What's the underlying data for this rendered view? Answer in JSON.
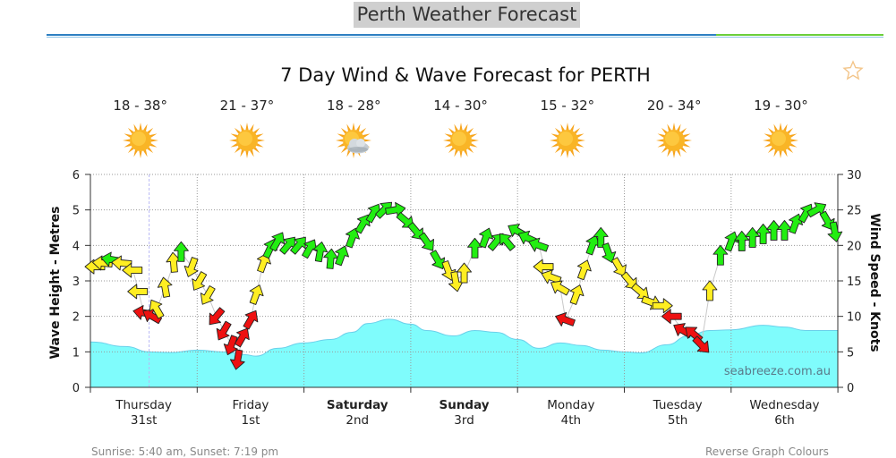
{
  "page": {
    "header": "Perth Weather Forecast",
    "sunrise_sunset": "Sunrise: 5:40 am, Sunset: 7:19 pm",
    "reverse_colours": "Reverse Graph Colours"
  },
  "colors": {
    "wave_fill": "#7ffcfc",
    "wave_stroke": "#6ad0ea",
    "arrow_green": "#22ee11",
    "arrow_yellow": "#ffee22",
    "arrow_red": "#ee1111",
    "grid": "#9a9a9a"
  },
  "chart_data": {
    "type": "area",
    "title": "7 Day Wind & Wave Forecast for PERTH",
    "ylabel_left": "Wave Height - Metres",
    "ylabel_right": "Wind Speed - Knots",
    "ylim_left": [
      0,
      6
    ],
    "ylim_right": [
      0,
      30
    ],
    "yticks_left": [
      "0",
      "1",
      "2",
      "3",
      "4",
      "5",
      "6"
    ],
    "yticks_right": [
      "0",
      "5",
      "10",
      "15",
      "20",
      "25",
      "30"
    ],
    "grid": true,
    "watermark": "seabreeze.com.au",
    "days": [
      {
        "name": "Thursday",
        "date": "31st",
        "temp": "18 - 38°",
        "icon": "sun-icon",
        "bold": false
      },
      {
        "name": "Friday",
        "date": "1st",
        "temp": "21 - 37°",
        "icon": "sun-icon",
        "bold": false
      },
      {
        "name": "Saturday",
        "date": "2nd",
        "temp": "18 - 28°",
        "icon": "sun-cloud-icon",
        "bold": true
      },
      {
        "name": "Sunday",
        "date": "3rd",
        "temp": "14 - 30°",
        "icon": "sun-icon",
        "bold": true
      },
      {
        "name": "Monday",
        "date": "4th",
        "temp": "15 - 32°",
        "icon": "sun-icon",
        "bold": false
      },
      {
        "name": "Tuesday",
        "date": "5th",
        "temp": "20 - 34°",
        "icon": "sun-icon",
        "bold": false
      },
      {
        "name": "Wednesday",
        "date": "6th",
        "temp": "19 - 30°",
        "icon": "sun-icon",
        "bold": false
      }
    ],
    "wave_height_series": {
      "name": "Wave Height - Metres",
      "x_days": [
        0,
        0.33,
        0.55,
        0.75,
        1.0,
        1.25,
        1.45,
        1.55,
        1.75,
        2.0,
        2.25,
        2.45,
        2.6,
        2.8,
        3.0,
        3.15,
        3.4,
        3.6,
        3.8,
        4.0,
        4.2,
        4.4,
        4.6,
        4.8,
        5.0,
        5.15,
        5.4,
        5.6,
        5.8,
        6.0,
        6.3,
        6.5,
        6.7
      ],
      "values": [
        1.28,
        1.15,
        1.0,
        0.98,
        1.05,
        1.0,
        0.92,
        0.88,
        1.1,
        1.25,
        1.35,
        1.55,
        1.8,
        1.92,
        1.78,
        1.6,
        1.45,
        1.6,
        1.55,
        1.35,
        1.1,
        1.25,
        1.18,
        1.05,
        1.0,
        0.97,
        1.2,
        1.45,
        1.6,
        1.62,
        1.75,
        1.7,
        1.6
      ]
    },
    "wind_series": {
      "name": "Wind Speed - Knots",
      "points": [
        {
          "x": 0.05,
          "kn": 17,
          "dir": 270
        },
        {
          "x": 0.12,
          "kn": 17.5,
          "dir": 275
        },
        {
          "x": 0.2,
          "kn": 18,
          "dir": 280
        },
        {
          "x": 0.3,
          "kn": 17.5,
          "dir": 275
        },
        {
          "x": 0.4,
          "kn": 16.5,
          "dir": 270
        },
        {
          "x": 0.45,
          "kn": 13.5,
          "dir": 270
        },
        {
          "x": 0.5,
          "kn": 10.5,
          "dir": 280
        },
        {
          "x": 0.58,
          "kn": 10,
          "dir": 300
        },
        {
          "x": 0.62,
          "kn": 11,
          "dir": 330
        },
        {
          "x": 0.7,
          "kn": 14,
          "dir": 350
        },
        {
          "x": 0.78,
          "kn": 17.5,
          "dir": 355
        },
        {
          "x": 0.85,
          "kn": 19,
          "dir": 0
        },
        {
          "x": 0.95,
          "kn": 17,
          "dir": 200
        },
        {
          "x": 1.02,
          "kn": 15,
          "dir": 210
        },
        {
          "x": 1.1,
          "kn": 13,
          "dir": 210
        },
        {
          "x": 1.18,
          "kn": 10,
          "dir": 220
        },
        {
          "x": 1.25,
          "kn": 8,
          "dir": 210
        },
        {
          "x": 1.32,
          "kn": 6,
          "dir": 200
        },
        {
          "x": 1.38,
          "kn": 4,
          "dir": 190
        },
        {
          "x": 1.42,
          "kn": 7,
          "dir": 30
        },
        {
          "x": 1.5,
          "kn": 9.5,
          "dir": 30
        },
        {
          "x": 1.55,
          "kn": 13,
          "dir": 20
        },
        {
          "x": 1.62,
          "kn": 17.5,
          "dir": 20
        },
        {
          "x": 1.68,
          "kn": 19.5,
          "dir": 25
        },
        {
          "x": 1.75,
          "kn": 20.5,
          "dir": 30
        },
        {
          "x": 1.85,
          "kn": 20,
          "dir": 40
        },
        {
          "x": 1.95,
          "kn": 20,
          "dir": 40
        },
        {
          "x": 2.05,
          "kn": 19.5,
          "dir": 30
        },
        {
          "x": 2.15,
          "kn": 19,
          "dir": 10
        },
        {
          "x": 2.25,
          "kn": 18,
          "dir": 5
        },
        {
          "x": 2.35,
          "kn": 18.5,
          "dir": 20
        },
        {
          "x": 2.45,
          "kn": 21,
          "dir": 20
        },
        {
          "x": 2.55,
          "kn": 23,
          "dir": 30
        },
        {
          "x": 2.65,
          "kn": 24.5,
          "dir": 30
        },
        {
          "x": 2.75,
          "kn": 25,
          "dir": 45
        },
        {
          "x": 2.85,
          "kn": 25,
          "dir": 80
        },
        {
          "x": 2.95,
          "kn": 23.5,
          "dir": 130
        },
        {
          "x": 3.05,
          "kn": 22,
          "dir": 140
        },
        {
          "x": 3.15,
          "kn": 20.5,
          "dir": 145
        },
        {
          "x": 3.25,
          "kn": 18,
          "dir": 150
        },
        {
          "x": 3.35,
          "kn": 16.5,
          "dir": 160
        },
        {
          "x": 3.42,
          "kn": 15,
          "dir": 170
        },
        {
          "x": 3.5,
          "kn": 16,
          "dir": 0
        },
        {
          "x": 3.6,
          "kn": 19.5,
          "dir": 0
        },
        {
          "x": 3.7,
          "kn": 21,
          "dir": 20
        },
        {
          "x": 3.8,
          "kn": 20.5,
          "dir": 40
        },
        {
          "x": 3.9,
          "kn": 20.5,
          "dir": 320
        },
        {
          "x": 4.0,
          "kn": 22,
          "dir": 300
        },
        {
          "x": 4.1,
          "kn": 21,
          "dir": 295
        },
        {
          "x": 4.2,
          "kn": 20,
          "dir": 290
        },
        {
          "x": 4.25,
          "kn": 17,
          "dir": 270
        },
        {
          "x": 4.32,
          "kn": 15.5,
          "dir": 290
        },
        {
          "x": 4.4,
          "kn": 14,
          "dir": 300
        },
        {
          "x": 4.45,
          "kn": 9.5,
          "dir": 290
        },
        {
          "x": 4.55,
          "kn": 13,
          "dir": 20
        },
        {
          "x": 4.62,
          "kn": 16.5,
          "dir": 20
        },
        {
          "x": 4.7,
          "kn": 20,
          "dir": 20
        },
        {
          "x": 4.78,
          "kn": 21,
          "dir": 0
        },
        {
          "x": 4.85,
          "kn": 19,
          "dir": 160
        },
        {
          "x": 4.95,
          "kn": 17,
          "dir": 150
        },
        {
          "x": 5.05,
          "kn": 15,
          "dir": 140
        },
        {
          "x": 5.15,
          "kn": 13.5,
          "dir": 130
        },
        {
          "x": 5.25,
          "kn": 12,
          "dir": 110
        },
        {
          "x": 5.35,
          "kn": 11.5,
          "dir": 90
        },
        {
          "x": 5.45,
          "kn": 10,
          "dir": 270
        },
        {
          "x": 5.55,
          "kn": 8,
          "dir": 300
        },
        {
          "x": 5.65,
          "kn": 7.5,
          "dir": 310
        },
        {
          "x": 5.72,
          "kn": 6,
          "dir": 135
        },
        {
          "x": 5.8,
          "kn": 13.5,
          "dir": 0
        },
        {
          "x": 5.9,
          "kn": 18.5,
          "dir": 0
        },
        {
          "x": 6.0,
          "kn": 20.5,
          "dir": 20
        },
        {
          "x": 6.1,
          "kn": 20.5,
          "dir": 0
        },
        {
          "x": 6.2,
          "kn": 21,
          "dir": 0
        },
        {
          "x": 6.3,
          "kn": 21.5,
          "dir": 0
        },
        {
          "x": 6.4,
          "kn": 22,
          "dir": 0
        },
        {
          "x": 6.5,
          "kn": 22,
          "dir": 0
        },
        {
          "x": 6.6,
          "kn": 23,
          "dir": 20
        },
        {
          "x": 6.7,
          "kn": 24.5,
          "dir": 30
        },
        {
          "x": 6.8,
          "kn": 25,
          "dir": 60
        },
        {
          "x": 6.9,
          "kn": 23.5,
          "dir": 150
        },
        {
          "x": 6.97,
          "kn": 22,
          "dir": 170
        }
      ]
    }
  }
}
